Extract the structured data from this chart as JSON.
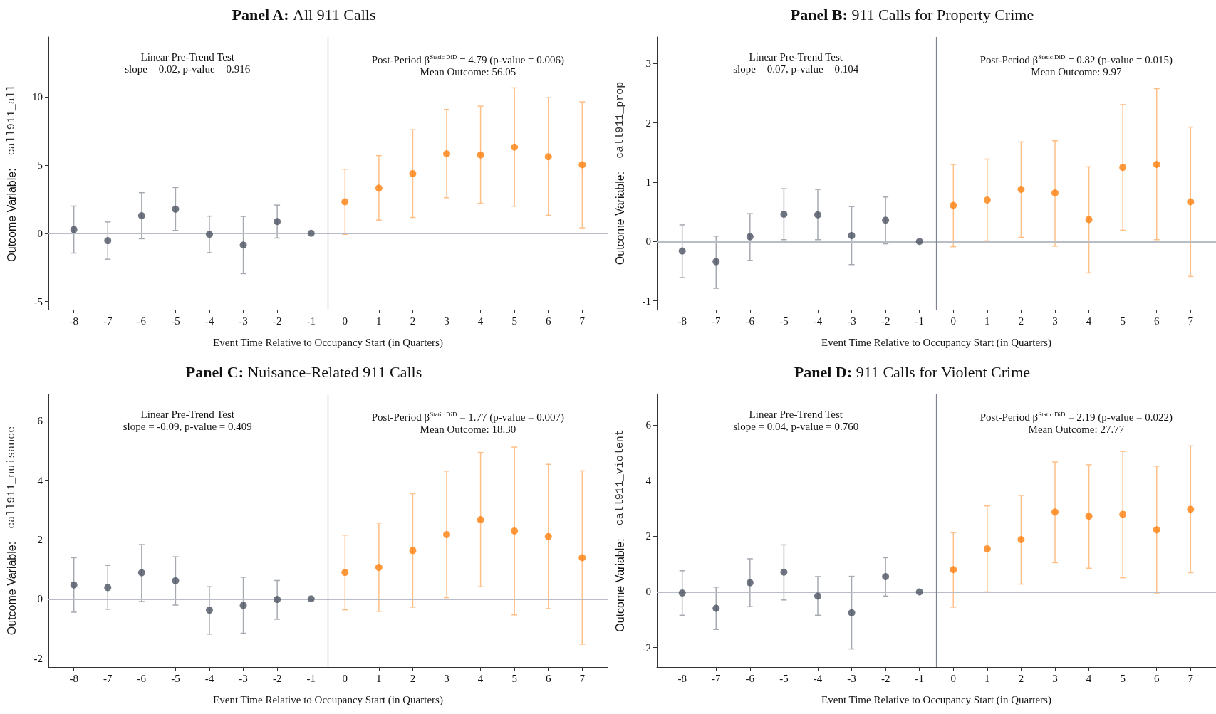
{
  "chart_data": [
    {
      "type": "scatter",
      "title": "Panel A: All 911 Calls",
      "xlabel": "Event Time Relative to Occupancy Start (in Quarters)",
      "ylabel": "Outcome Variable:  call911_all",
      "annotations": [
        "Linear Pre-Trend Test\nslope = 0.02, p-value = 0.916",
        "Post-Period β$^{Static DiD}$ = 4.79 (p-value = 0.006)\nMean Outcome: 56.05"
      ],
      "xlim": [
        -8.75,
        7.75
      ],
      "xticks": [
        -8,
        -7,
        -6,
        -5,
        -4,
        -3,
        -2,
        -1,
        0,
        1,
        2,
        3,
        4,
        5,
        6,
        7
      ],
      "ylim": [
        -5.6,
        14.4
      ],
      "yticks": [
        -5,
        0,
        5,
        10
      ],
      "grid": false,
      "marker": "circle",
      "ref_lines": [
        {
          "axis": "y",
          "value": 0,
          "color": "#b9bdc6"
        },
        {
          "axis": "x",
          "value": -0.5,
          "color": "#7d8290"
        }
      ],
      "series": [
        {
          "color": "#4b5361",
          "x": [
            -8,
            -7,
            -6,
            -5,
            -4,
            -3,
            -2,
            -1
          ],
          "values": [
            0.27,
            -0.54,
            1.29,
            1.77,
            -0.08,
            -0.86,
            0.86,
            0
          ],
          "errors": [
            [
              -1.45,
              2.0
            ],
            [
              -1.9,
              0.83
            ],
            [
              -0.4,
              2.98
            ],
            [
              0.21,
              3.36
            ],
            [
              -1.42,
              1.26
            ],
            [
              -2.96,
              1.24
            ],
            [
              -0.35,
              2.07
            ],
            null
          ]
        },
        {
          "color": "#ff7f0e",
          "x": [
            0,
            1,
            2,
            3,
            4,
            5,
            6,
            7
          ],
          "values": [
            2.31,
            3.31,
            4.38,
            5.83,
            5.75,
            6.32,
            5.62,
            5.03
          ],
          "errors": [
            [
              -0.08,
              4.7
            ],
            [
              0.97,
              5.7
            ],
            [
              1.16,
              7.6
            ],
            [
              2.61,
              9.09
            ],
            [
              2.2,
              9.33
            ],
            [
              1.99,
              10.67
            ],
            [
              1.32,
              9.95
            ],
            [
              0.4,
              9.65
            ]
          ]
        }
      ]
    },
    {
      "type": "scatter",
      "title": "Panel B: 911 Calls for Property Crime",
      "xlabel": "Event Time Relative to Occupancy Start (in Quarters)",
      "ylabel": "Outcome Variable:  call911_prop",
      "annotations": [
        "Linear Pre-Trend Test\nslope = 0.07, p-value = 0.104",
        "Post-Period β$^{Static DiD}$ = 0.82 (p-value = 0.015)\nMean Outcome: 9.97"
      ],
      "xlim": [
        -8.75,
        7.75
      ],
      "xticks": [
        -8,
        -7,
        -6,
        -5,
        -4,
        -3,
        -2,
        -1,
        0,
        1,
        2,
        3,
        4,
        5,
        6,
        7
      ],
      "ylim": [
        -1.15,
        3.45
      ],
      "yticks": [
        -1,
        0,
        1,
        2,
        3
      ],
      "grid": false,
      "marker": "circle",
      "ref_lines": [
        {
          "axis": "y",
          "value": 0,
          "color": "#b9bdc6"
        },
        {
          "axis": "x",
          "value": -0.5,
          "color": "#7d8290"
        }
      ],
      "series": [
        {
          "color": "#4b5361",
          "x": [
            -8,
            -7,
            -6,
            -5,
            -4,
            -3,
            -2,
            -1
          ],
          "values": [
            -0.16,
            -0.34,
            0.08,
            0.46,
            0.45,
            0.1,
            0.36,
            0
          ],
          "errors": [
            [
              -0.61,
              0.28
            ],
            [
              -0.79,
              0.09
            ],
            [
              -0.32,
              0.47
            ],
            [
              0.03,
              0.89
            ],
            [
              0.03,
              0.88
            ],
            [
              -0.39,
              0.59
            ],
            [
              -0.04,
              0.75
            ],
            null
          ]
        },
        {
          "color": "#ff7f0e",
          "x": [
            0,
            1,
            2,
            3,
            4,
            5,
            6,
            7
          ],
          "values": [
            0.61,
            0.7,
            0.88,
            0.82,
            0.37,
            1.25,
            1.3,
            0.67
          ],
          "errors": [
            [
              -0.09,
              1.3
            ],
            [
              0.01,
              1.39
            ],
            [
              0.07,
              1.68
            ],
            [
              -0.08,
              1.7
            ],
            [
              -0.53,
              1.26
            ],
            [
              0.19,
              2.31
            ],
            [
              0.03,
              2.58
            ],
            [
              -0.59,
              1.93
            ]
          ]
        }
      ]
    },
    {
      "type": "scatter",
      "title": "Panel C: Nuisance-Related 911 Calls",
      "xlabel": "Event Time Relative to Occupancy Start (in Quarters)",
      "ylabel": "Outcome Variable:  call911_nuisance",
      "annotations": [
        "Linear Pre-Trend Test\nslope = -0.09, p-value = 0.409",
        "Post-Period β$^{Static DiD}$ = 1.77 (p-value = 0.007)\nMean Outcome: 18.30"
      ],
      "xlim": [
        -8.75,
        7.75
      ],
      "xticks": [
        -8,
        -7,
        -6,
        -5,
        -4,
        -3,
        -2,
        -1,
        0,
        1,
        2,
        3,
        4,
        5,
        6,
        7
      ],
      "ylim": [
        -2.3,
        6.9
      ],
      "yticks": [
        -2,
        0,
        2,
        4,
        6
      ],
      "grid": false,
      "marker": "circle",
      "ref_lines": [
        {
          "axis": "y",
          "value": 0,
          "color": "#b9bdc6"
        },
        {
          "axis": "x",
          "value": -0.5,
          "color": "#7d8290"
        }
      ],
      "series": [
        {
          "color": "#4b5361",
          "x": [
            -8,
            -7,
            -6,
            -5,
            -4,
            -3,
            -2,
            -1
          ],
          "values": [
            0.47,
            0.38,
            0.88,
            0.61,
            -0.38,
            -0.22,
            -0.02,
            0
          ],
          "errors": [
            [
              -0.45,
              1.39
            ],
            [
              -0.35,
              1.13
            ],
            [
              -0.09,
              1.83
            ],
            [
              -0.21,
              1.42
            ],
            [
              -1.19,
              0.41
            ],
            [
              -1.16,
              0.73
            ],
            [
              -0.69,
              0.62
            ],
            null
          ]
        },
        {
          "color": "#ff7f0e",
          "x": [
            0,
            1,
            2,
            3,
            4,
            5,
            6,
            7
          ],
          "values": [
            0.89,
            1.06,
            1.63,
            2.17,
            2.67,
            2.29,
            2.1,
            1.39
          ],
          "errors": [
            [
              -0.37,
              2.15
            ],
            [
              -0.42,
              2.56
            ],
            [
              -0.28,
              3.55
            ],
            [
              0.04,
              4.31
            ],
            [
              0.41,
              4.94
            ],
            [
              -0.54,
              5.12
            ],
            [
              -0.33,
              4.54
            ],
            [
              -1.53,
              4.32
            ]
          ]
        }
      ]
    },
    {
      "type": "scatter",
      "title": "Panel D: 911 Calls for Violent Crime",
      "xlabel": "Event Time Relative to Occupancy Start (in Quarters)",
      "ylabel": "Outcome Variable:  call911_violent",
      "annotations": [
        "Linear Pre-Trend Test\nslope = 0.04, p-value = 0.760",
        "Post-Period β$^{Static DiD}$ = 2.19 (p-value = 0.022)\nMean Outcome: 27.77"
      ],
      "xlim": [
        -8.75,
        7.75
      ],
      "xticks": [
        -8,
        -7,
        -6,
        -5,
        -4,
        -3,
        -2,
        -1,
        0,
        1,
        2,
        3,
        4,
        5,
        6,
        7
      ],
      "ylim": [
        -2.7,
        7.1
      ],
      "yticks": [
        -2,
        0,
        2,
        4,
        6
      ],
      "grid": false,
      "marker": "circle",
      "ref_lines": [
        {
          "axis": "y",
          "value": 0,
          "color": "#b9bdc6"
        },
        {
          "axis": "x",
          "value": -0.5,
          "color": "#7d8290"
        }
      ],
      "series": [
        {
          "color": "#4b5361",
          "x": [
            -8,
            -7,
            -6,
            -5,
            -4,
            -3,
            -2,
            -1
          ],
          "values": [
            -0.04,
            -0.59,
            0.33,
            0.71,
            -0.15,
            -0.75,
            0.55,
            0
          ],
          "errors": [
            [
              -0.84,
              0.76
            ],
            [
              -1.35,
              0.17
            ],
            [
              -0.53,
              1.19
            ],
            [
              -0.29,
              1.69
            ],
            [
              -0.84,
              0.55
            ],
            [
              -2.05,
              0.56
            ],
            [
              -0.15,
              1.23
            ],
            null
          ]
        },
        {
          "color": "#ff7f0e",
          "x": [
            0,
            1,
            2,
            3,
            4,
            5,
            6,
            7
          ],
          "values": [
            0.8,
            1.55,
            1.88,
            2.87,
            2.72,
            2.79,
            2.23,
            2.97
          ],
          "errors": [
            [
              -0.55,
              2.13
            ],
            [
              0.0,
              3.09
            ],
            [
              0.28,
              3.47
            ],
            [
              1.05,
              4.67
            ],
            [
              0.85,
              4.57
            ],
            [
              0.51,
              5.05
            ],
            [
              -0.07,
              4.52
            ],
            [
              0.69,
              5.25
            ]
          ]
        }
      ]
    }
  ]
}
